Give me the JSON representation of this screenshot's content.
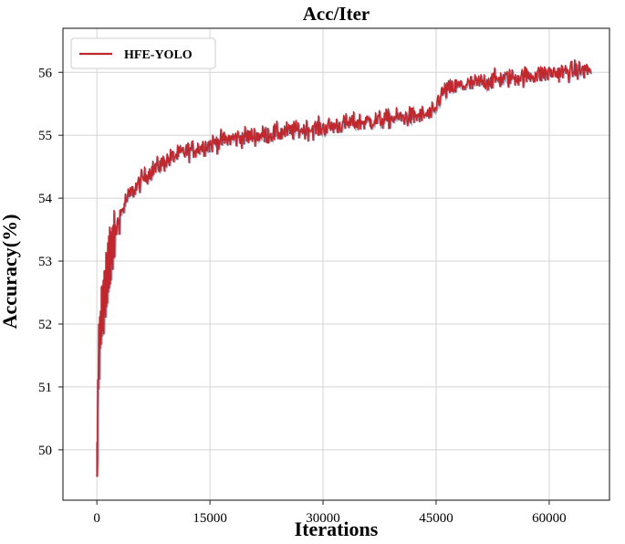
{
  "chart_data": {
    "type": "line",
    "title": "Acc/Iter",
    "xlabel": "Iterations",
    "ylabel": "Accuracy(%)",
    "xlim": [
      -4500,
      68000
    ],
    "ylim": [
      49.2,
      56.7
    ],
    "xticks": [
      0,
      15000,
      30000,
      45000,
      60000
    ],
    "yticks": [
      50,
      51,
      52,
      53,
      54,
      55,
      56
    ],
    "grid": true,
    "legend_position": "top-left",
    "series_color": "#c0282d",
    "shadow_color": "#4a5a8a",
    "series": [
      {
        "name": "HFE-YOLO",
        "x": [
          0,
          100,
          200,
          400,
          600,
          800,
          1000,
          1500,
          2000,
          2500,
          3000,
          3500,
          4000,
          5000,
          6000,
          7000,
          8000,
          9000,
          10000,
          12000,
          14000,
          16000,
          18000,
          20000,
          22000,
          24000,
          26000,
          28000,
          30000,
          32000,
          34000,
          36000,
          38000,
          40000,
          42000,
          44000,
          44800,
          45200,
          46000,
          48000,
          50000,
          52000,
          54000,
          56000,
          58000,
          60000,
          62000,
          64000,
          65500
        ],
        "y": [
          49.58,
          50.6,
          51.4,
          51.8,
          52.05,
          52.25,
          52.45,
          52.9,
          53.25,
          53.5,
          53.7,
          53.85,
          54.0,
          54.15,
          54.3,
          54.42,
          54.5,
          54.58,
          54.65,
          54.75,
          54.82,
          54.9,
          54.95,
          54.98,
          55.0,
          55.04,
          55.07,
          55.1,
          55.12,
          55.16,
          55.2,
          55.22,
          55.25,
          55.28,
          55.3,
          55.33,
          55.35,
          55.55,
          55.7,
          55.78,
          55.82,
          55.87,
          55.9,
          55.93,
          55.96,
          55.99,
          56.01,
          56.03,
          56.04
        ]
      }
    ]
  }
}
